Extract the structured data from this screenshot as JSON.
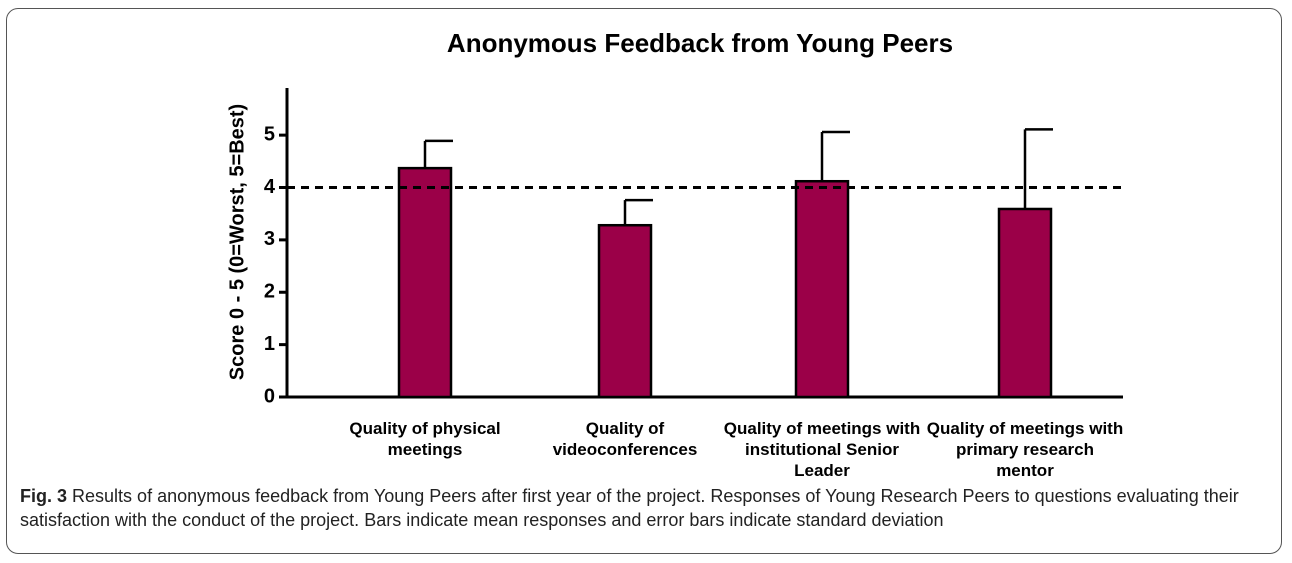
{
  "chart_data": {
    "type": "bar",
    "title": "Anonymous Feedback from Young Peers",
    "ylabel": "Score 0 - 5 (0=Worst, 5=Best)",
    "categories": [
      "Quality of physical meetings",
      "Quality of videoconferences",
      "Quality of meetings with institutional Senior Leader",
      "Quality of meetings with primary research mentor"
    ],
    "values": [
      4.37,
      3.28,
      4.12,
      3.59
    ],
    "errors": [
      0.52,
      0.48,
      0.94,
      1.52
    ],
    "color": "#9b0048",
    "ylim": [
      0,
      5.9
    ],
    "yticks": [
      0,
      1,
      2,
      3,
      4,
      5
    ],
    "reference_line": 4
  },
  "caption": {
    "label": "Fig. 3",
    "text": "Results of anonymous feedback from Young Peers after first year of the project. Responses of Young Research Peers to questions evaluating their satisfaction with the conduct of the project. Bars indicate mean responses and error bars indicate standard deviation"
  }
}
